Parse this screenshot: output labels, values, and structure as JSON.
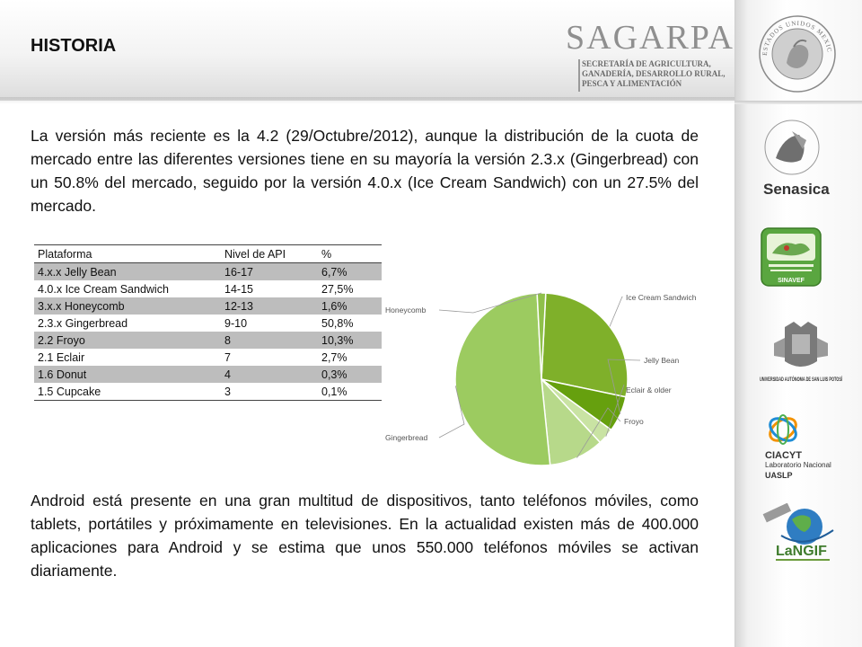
{
  "header": {
    "title": "HISTORIA",
    "sagarpa": {
      "name": "SAGARPA",
      "subtitle": [
        "SECRETARÍA DE AGRICULTURA,",
        "GANADERÍA, DESARROLLO RURAL,",
        "PESCA Y ALIMENTACIÓN"
      ]
    },
    "seal_text": "ESTADOS UNIDOS MEXICANOS"
  },
  "body": {
    "paragraph1": "La versión más reciente es la 4.2 (29/Octubre/2012), aunque la distribución de la cuota de mercado entre las diferentes versiones tiene en su mayoría la versión 2.3.x (Gingerbread) con un 50.8% del mercado, seguido por la versión 4.0.x (Ice Cream Sandwich) con un 27.5% del mercado.",
    "paragraph2": "Android está presente en una gran multitud de dispositivos, tanto teléfonos móviles, como tablets, portátiles y próximamente en televisiones. En la actualidad existen más de 400.000 aplicaciones para Android y se estima que unos 550.000 teléfonos móviles se activan diariamente."
  },
  "table": {
    "headers": [
      "Plataforma",
      "Nivel de API",
      "%"
    ],
    "rows": [
      [
        "4.x.x Jelly Bean",
        "16-17",
        "6,7%"
      ],
      [
        "4.0.x Ice Cream Sandwich",
        "14-15",
        "27,5%"
      ],
      [
        "3.x.x Honeycomb",
        "12-13",
        "1,6%"
      ],
      [
        "2.3.x Gingerbread",
        "9-10",
        "50,8%"
      ],
      [
        "2.2 Froyo",
        "8",
        "10,3%"
      ],
      [
        "2.1 Eclair",
        "7",
        "2,7%"
      ],
      [
        "1.6 Donut",
        "4",
        "0,3%"
      ],
      [
        "1.5 Cupcake",
        "3",
        "0,1%"
      ]
    ]
  },
  "chart_data": {
    "type": "pie",
    "slices": [
      {
        "label": "Ice Cream Sandwich",
        "value": 27.5,
        "color": "#7fb02a"
      },
      {
        "label": "Jelly Bean",
        "value": 6.7,
        "color": "#66a00e"
      },
      {
        "label": "Eclair & older",
        "value": 3.1,
        "color": "#c9e3a3"
      },
      {
        "label": "Froyo",
        "value": 10.3,
        "color": "#b7d98a"
      },
      {
        "label": "Gingerbread",
        "value": 50.8,
        "color": "#9ccb60"
      },
      {
        "label": "Honeycomb",
        "value": 1.6,
        "color": "#8fc04a"
      }
    ]
  },
  "sidebar": {
    "logos": [
      {
        "name": "Senasica",
        "text": "Senasica"
      },
      {
        "name": "SINAVEF",
        "text": "SINAVEF"
      },
      {
        "name": "UASLP",
        "text": "UNIVERSIDAD AUTÓNOMA DE SAN LUIS POTOSÍ"
      },
      {
        "name": "CIACYT",
        "text": "CIACYT",
        "line2": "Laboratorio Nacional",
        "line3": "UASLP"
      },
      {
        "name": "LaNGIF",
        "text": "LaNGIF"
      }
    ]
  }
}
